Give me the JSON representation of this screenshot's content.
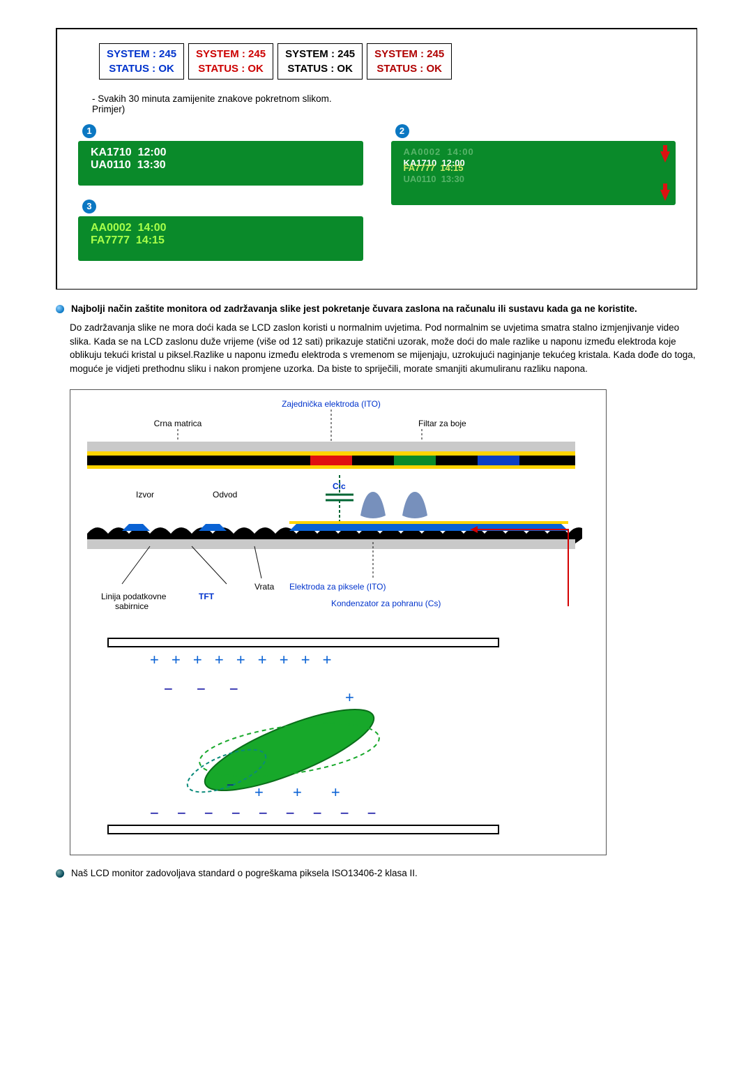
{
  "statusBoxes": [
    {
      "line1": "SYSTEM : 245",
      "line2": "STATUS : OK",
      "styleClass": "status-blue"
    },
    {
      "line1": "SYSTEM : 245",
      "line2": "STATUS : OK",
      "styleClass": "status-red"
    },
    {
      "line1": "SYSTEM : 245",
      "line2": "STATUS : OK",
      "styleClass": "status-black"
    },
    {
      "line1": "SYSTEM : 245",
      "line2": "STATUS : OK",
      "styleClass": "status-d-red"
    }
  ],
  "instruction": "- Svakih 30 minuta zamijenite znakove pokretnom slikom.",
  "exampleLabel": "Primjer)",
  "badges": {
    "p1": "1",
    "p2": "2",
    "p3": "3"
  },
  "panel1": {
    "textColor": "#ffffff",
    "rows": [
      "KA1710  12:00",
      "UA0110  13:30"
    ]
  },
  "panel2": {
    "ghostTop": "AA0002  14:00",
    "midA": "KA1710  12:00",
    "midB": "FA7777  14:15",
    "ghostBot": "UA0110  13:30"
  },
  "panel3": {
    "textColor": "#a7ff4a",
    "rows": [
      "AA0002  14:00",
      "FA7777  14:15"
    ]
  },
  "section2": {
    "heading": "Najbolji način zaštite monitora od zadržavanja slike jest pokretanje čuvara zaslona na računalu ili sustavu kada ga ne koristite.",
    "body": "Do zadržavanja slike ne mora doći kada se LCD zaslon koristi u normalnim uvjetima. Pod normalnim se uvjetima smatra stalno izmjenjivanje video slika. Kada se na LCD zaslonu duže vrijeme (više od 12 sati) prikazuje statični uzorak, može doći do male razlike u naponu između elektroda koje oblikuju tekući kristal u piksel.Razlike u naponu između elektroda s vremenom se mijenjaju, uzrokujući naginjanje tekućeg kristala. Kada dođe do toga, moguće je vidjeti prethodnu sliku i nakon promjene uzorka. Da biste to spriječili, morate smanjiti akumuliranu razliku napona."
  },
  "tftLabels": {
    "commonElectrode": "Zajednička elektroda (ITO)",
    "blackMatrix": "Crna matrica",
    "colorFilter": "Filtar za boje",
    "source": "Izvor",
    "drain": "Odvod",
    "clc": "Clc",
    "gate": "Vrata",
    "pixelElectrode": "Elektroda za piksele (ITO)",
    "dataBusLine": "Linija podatkovne",
    "tft": "TFT",
    "busLine2": "sabirnice",
    "storageCap": "Kondenzator za pohranu (Cs)"
  },
  "tftStyle": {
    "layerColors": {
      "background": "#ffffff",
      "outline": "#000000",
      "yellowRow": "#ffd400",
      "blackRow": "#000000",
      "redSeg": "#e01010",
      "greenSeg": "#0a8a2a",
      "blueSeg": "#0a3ec4",
      "grayStripe": "#c9c9c9",
      "wave": "#000000",
      "blueLayer": "#0a62d4",
      "lcBlob": "#5f7db0",
      "leaderLine": "#111111",
      "capArrowRed": "#d40000",
      "pixelElectrodeText": "#0033cc",
      "storageCapText": "#0033cc",
      "tftText": "#0033cc"
    },
    "fontSizes": {
      "label": 12
    }
  },
  "capFigure": {
    "topCharges": "+ + + + + + + + +",
    "midMinus1": "−   −   −",
    "midPlusRight": "+",
    "midMinusRow": "−  −",
    "lowPlus": "+    +     +",
    "lowMinus2": "−",
    "bottomCharges": "− − − − − − − − −",
    "colors": {
      "frame": "#000000",
      "plus": "#0a62d4",
      "minus": "#0a0aa0",
      "blob": "#17a82a",
      "blobEdge": "#0a6d1a",
      "dashGreen": "#17a82a",
      "dashTeal": "#0a8a7a"
    },
    "fontSizes": {
      "charge": 22
    }
  },
  "footer": "Naš LCD monitor zadovoljava standard o pogreškama piksela ISO13406-2 klasa II."
}
